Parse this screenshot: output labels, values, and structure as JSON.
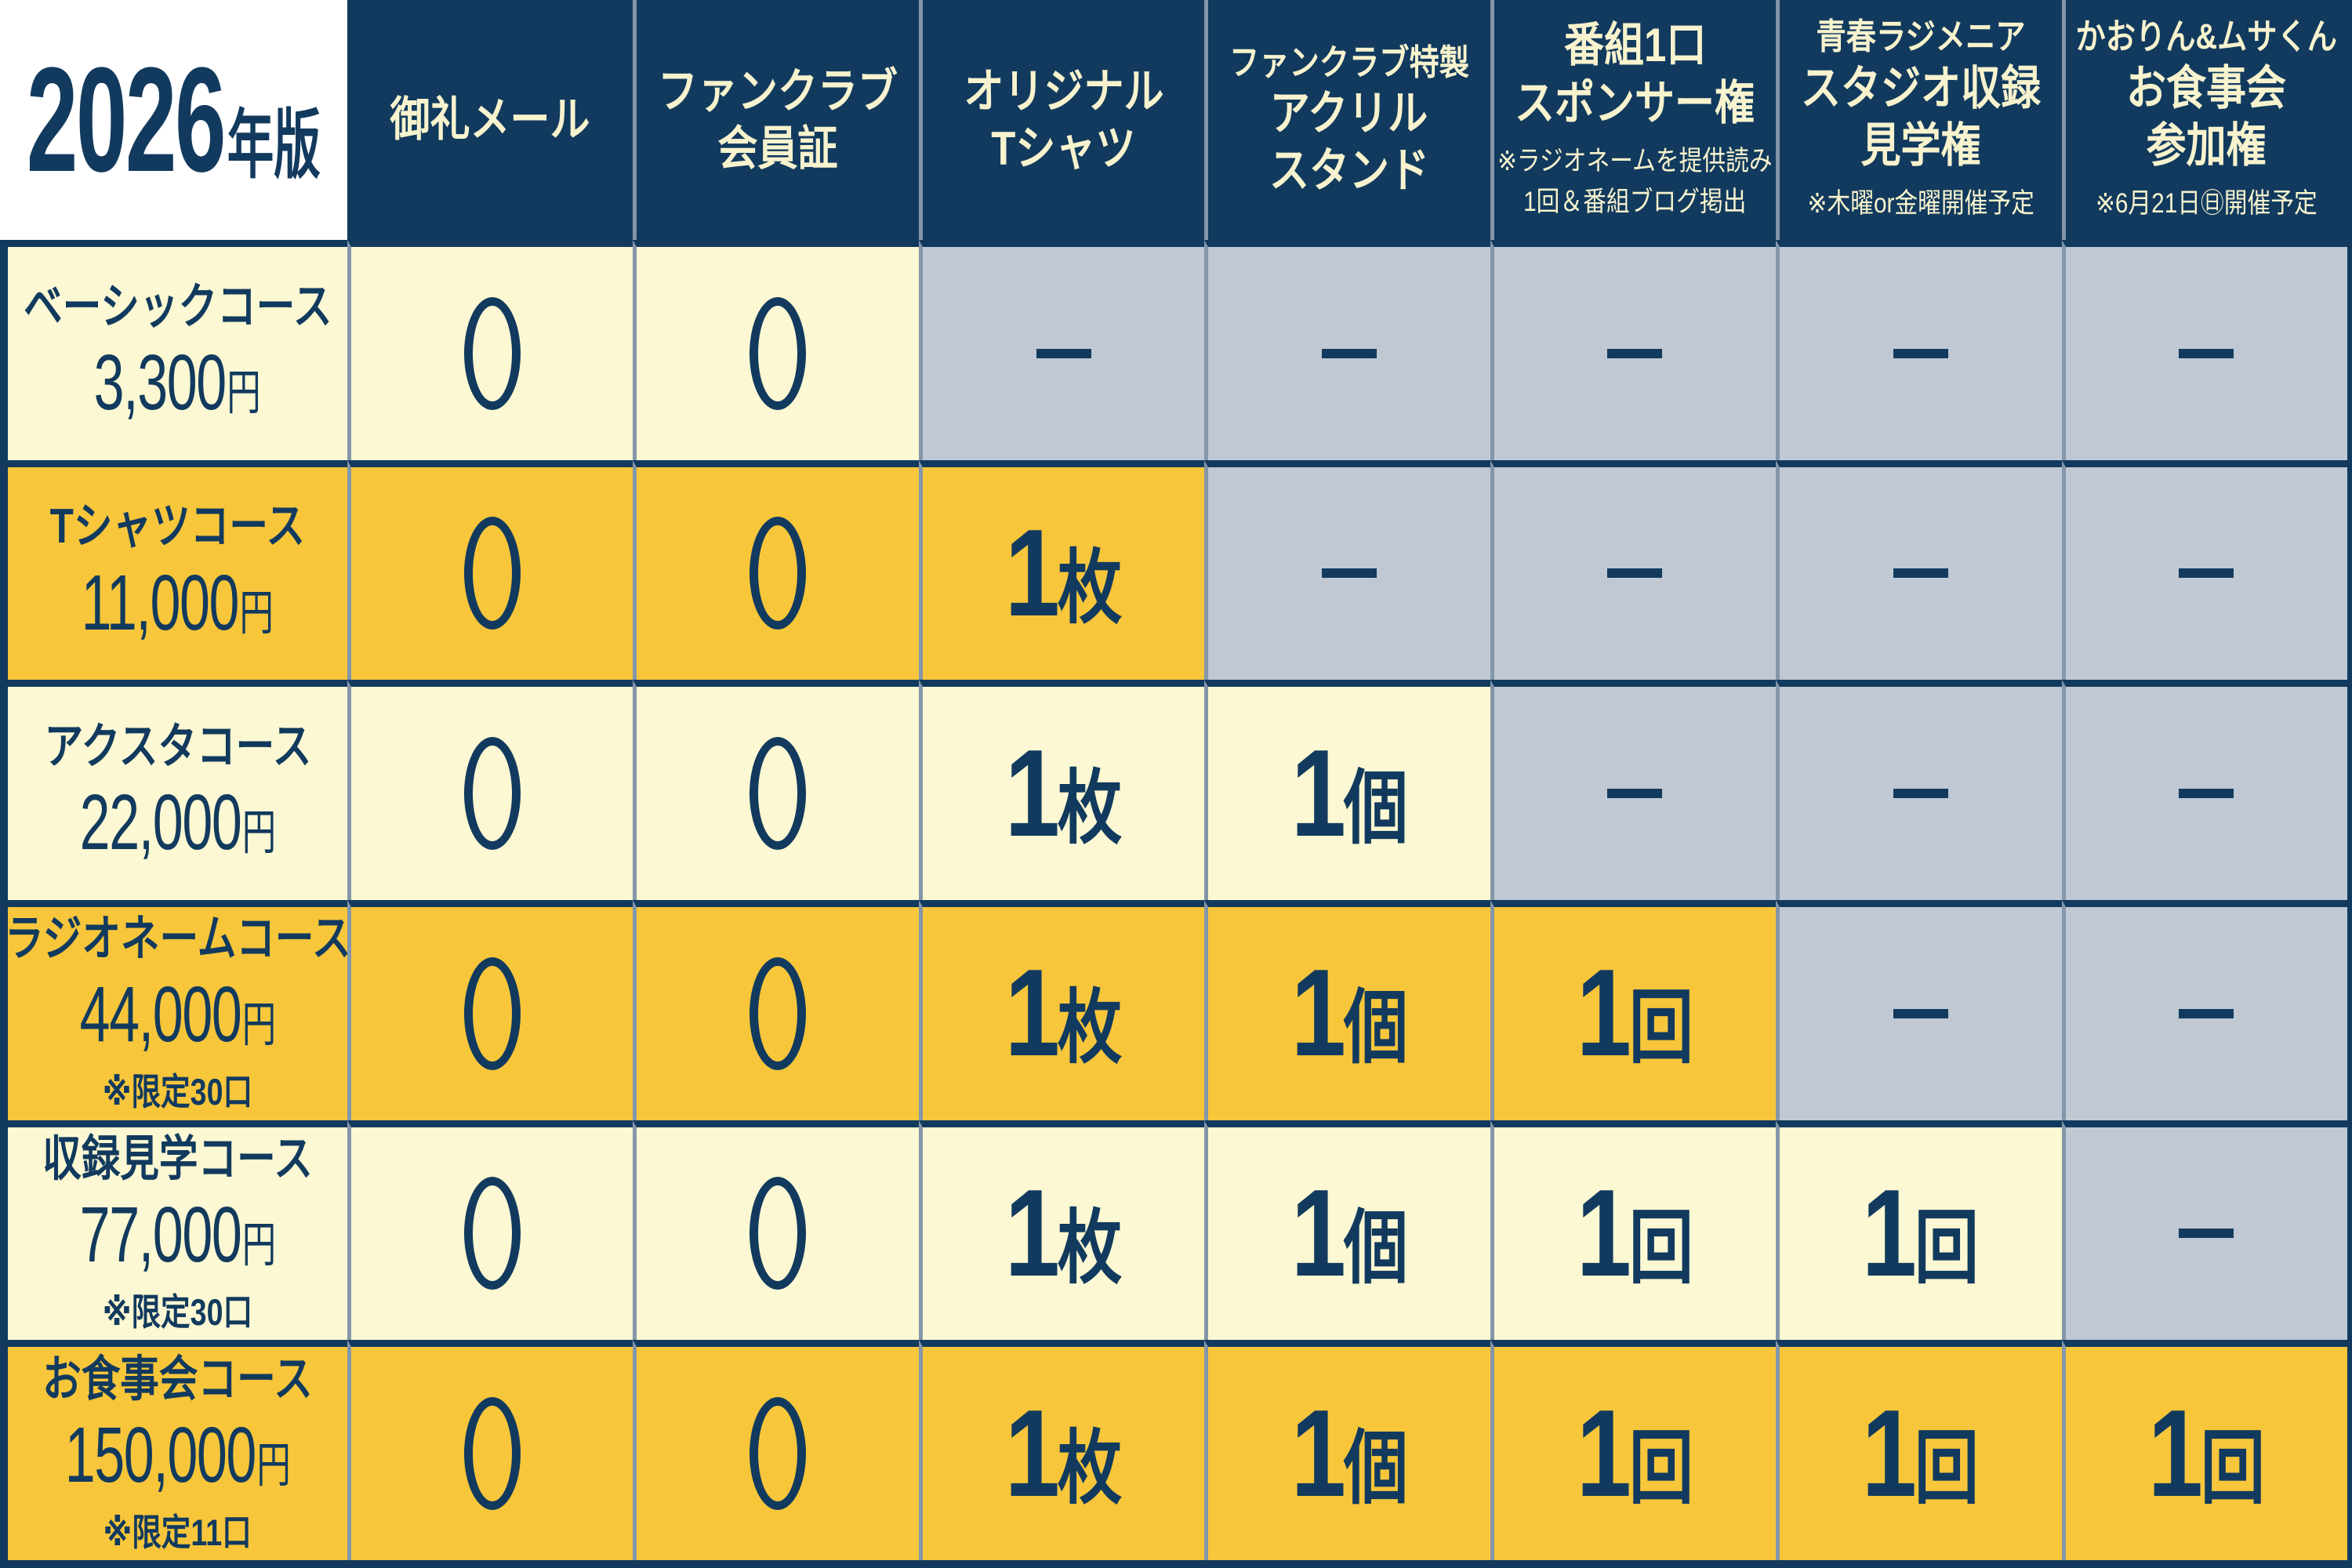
{
  "palette": {
    "navy": "#123A5E",
    "cream_text": "#F7F3CE",
    "row_yellow": "#FBF8D3",
    "row_orange": "#F7C63B",
    "unavailable_gray": "#BFC8D3",
    "divider_gray": "#8496A9",
    "corner_white": "#FFFFFF"
  },
  "table": {
    "edition_year": "2026",
    "edition_suffix": "年版",
    "columns": [
      {
        "lines": [
          "御礼メール"
        ],
        "notes": []
      },
      {
        "lines": [
          "ファンクラブ",
          "会員証"
        ],
        "notes": []
      },
      {
        "lines": [
          "オリジナル",
          "Tシャツ"
        ],
        "notes": []
      },
      {
        "small_top": "ファンクラブ特製",
        "lines": [
          "アクリル",
          "スタンド"
        ],
        "notes": []
      },
      {
        "lines": [
          "番組1口",
          "スポンサー権"
        ],
        "notes": [
          "※ラジオネームを提供読み",
          "1回＆番組ブログ掲出"
        ]
      },
      {
        "small_top": "青春ラジメニア",
        "lines": [
          "スタジオ収録",
          "見学権"
        ],
        "notes": [
          "※木曜or金曜開催予定"
        ]
      },
      {
        "small_top": "かおりん&ムサくん",
        "lines": [
          "お食事会",
          "参加権"
        ],
        "notes": [
          "※6月21日㊐開催予定"
        ]
      }
    ],
    "rows": [
      {
        "name": "ベーシックコース",
        "price": "3,300",
        "currency": "円",
        "note": "",
        "tone": "yellow",
        "cells": [
          {
            "mark": "circle"
          },
          {
            "mark": "circle"
          },
          {
            "mark": "dash"
          },
          {
            "mark": "dash"
          },
          {
            "mark": "dash"
          },
          {
            "mark": "dash"
          },
          {
            "mark": "dash"
          }
        ]
      },
      {
        "name": "Tシャツコース",
        "price": "11,000",
        "currency": "円",
        "note": "",
        "tone": "orange",
        "cells": [
          {
            "mark": "circle"
          },
          {
            "mark": "circle"
          },
          {
            "num": "1",
            "unit": "枚"
          },
          {
            "mark": "dash"
          },
          {
            "mark": "dash"
          },
          {
            "mark": "dash"
          },
          {
            "mark": "dash"
          }
        ]
      },
      {
        "name": "アクスタコース",
        "price": "22,000",
        "currency": "円",
        "note": "",
        "tone": "yellow",
        "cells": [
          {
            "mark": "circle"
          },
          {
            "mark": "circle"
          },
          {
            "num": "1",
            "unit": "枚"
          },
          {
            "num": "1",
            "unit": "個"
          },
          {
            "mark": "dash"
          },
          {
            "mark": "dash"
          },
          {
            "mark": "dash"
          }
        ]
      },
      {
        "name": "ラジオネームコース",
        "price": "44,000",
        "currency": "円",
        "note": "※限定30口",
        "tone": "orange",
        "cells": [
          {
            "mark": "circle"
          },
          {
            "mark": "circle"
          },
          {
            "num": "1",
            "unit": "枚"
          },
          {
            "num": "1",
            "unit": "個"
          },
          {
            "num": "1",
            "unit": "回"
          },
          {
            "mark": "dash"
          },
          {
            "mark": "dash"
          }
        ]
      },
      {
        "name": "収録見学コース",
        "price": "77,000",
        "currency": "円",
        "note": "※限定30口",
        "tone": "yellow",
        "cells": [
          {
            "mark": "circle"
          },
          {
            "mark": "circle"
          },
          {
            "num": "1",
            "unit": "枚"
          },
          {
            "num": "1",
            "unit": "個"
          },
          {
            "num": "1",
            "unit": "回"
          },
          {
            "num": "1",
            "unit": "回"
          },
          {
            "mark": "dash"
          }
        ]
      },
      {
        "name": "お食事会コース",
        "price": "150,000",
        "currency": "円",
        "note": "※限定11口",
        "tone": "orange",
        "cells": [
          {
            "mark": "circle"
          },
          {
            "mark": "circle"
          },
          {
            "num": "1",
            "unit": "枚"
          },
          {
            "num": "1",
            "unit": "個"
          },
          {
            "num": "1",
            "unit": "回"
          },
          {
            "num": "1",
            "unit": "回"
          },
          {
            "num": "1",
            "unit": "回"
          }
        ]
      }
    ]
  }
}
